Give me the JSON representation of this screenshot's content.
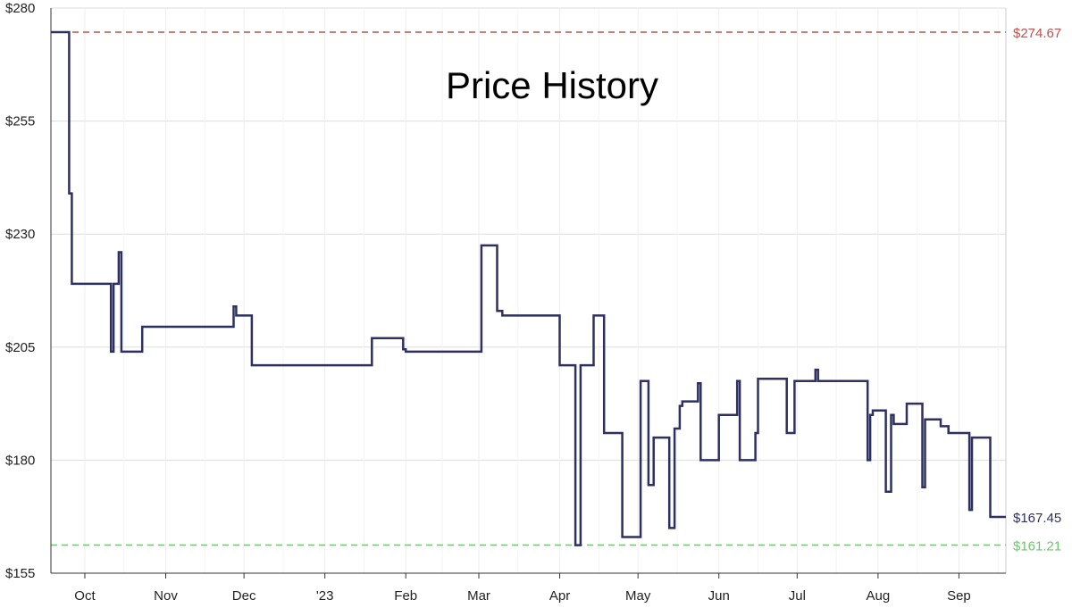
{
  "chart_data": {
    "type": "line",
    "title": "Price History",
    "xlabel": "",
    "ylabel": "",
    "step": true,
    "currency": "$",
    "ylim": [
      155,
      280
    ],
    "yticks": [
      155,
      180,
      205,
      230,
      255,
      280
    ],
    "ytick_labels": [
      "$155",
      "$180",
      "$205",
      "$230",
      "$255",
      "$280"
    ],
    "xlim": [
      "2022-09-18",
      "2023-09-19"
    ],
    "xticks": [
      {
        "date": "2022-10-01",
        "label": "Oct"
      },
      {
        "date": "2022-11-01",
        "label": "Nov"
      },
      {
        "date": "2022-12-01",
        "label": "Dec"
      },
      {
        "date": "2023-01-01",
        "label": "'23"
      },
      {
        "date": "2023-02-01",
        "label": "Feb"
      },
      {
        "date": "2023-03-01",
        "label": "Mar"
      },
      {
        "date": "2023-04-01",
        "label": "Apr"
      },
      {
        "date": "2023-05-01",
        "label": "May"
      },
      {
        "date": "2023-06-01",
        "label": "Jun"
      },
      {
        "date": "2023-07-01",
        "label": "Jul"
      },
      {
        "date": "2023-08-01",
        "label": "Aug"
      },
      {
        "date": "2023-09-01",
        "label": "Sep"
      }
    ],
    "grid": true,
    "colors": {
      "line": "#2d3060",
      "highest": "#c0504d",
      "lowest": "#6cc56c",
      "current": "#2d3060",
      "grid": "#dddddd"
    },
    "reference_lines": [
      {
        "kind": "highest",
        "value": 274.67,
        "label": "$274.67"
      },
      {
        "kind": "lowest",
        "value": 161.21,
        "label": "$161.21"
      }
    ],
    "current": {
      "value": 167.45,
      "label": "$167.45"
    },
    "series": [
      {
        "x": [
          "2022-09-18",
          "2022-09-25",
          "2022-09-26",
          "2022-10-11",
          "2022-10-12",
          "2022-10-14",
          "2022-10-15",
          "2022-10-16",
          "2022-10-17",
          "2022-10-23",
          "2022-11-27",
          "2022-11-28",
          "2022-12-04",
          "2023-01-09",
          "2023-01-19",
          "2023-01-20",
          "2023-01-31",
          "2023-02-01",
          "2023-02-28",
          "2023-03-02",
          "2023-03-08",
          "2023-03-10",
          "2023-03-24",
          "2023-03-25",
          "2023-04-01",
          "2023-04-07",
          "2023-04-09",
          "2023-04-14",
          "2023-04-18",
          "2023-04-25",
          "2023-05-02",
          "2023-05-05",
          "2023-05-07",
          "2023-05-12",
          "2023-05-13",
          "2023-05-15",
          "2023-05-17",
          "2023-05-18",
          "2023-05-24",
          "2023-05-25",
          "2023-05-31",
          "2023-06-01",
          "2023-06-08",
          "2023-06-09",
          "2023-06-15",
          "2023-06-16",
          "2023-06-27",
          "2023-06-30",
          "2023-07-08",
          "2023-07-09",
          "2023-07-28",
          "2023-07-29",
          "2023-07-30",
          "2023-08-03",
          "2023-08-04",
          "2023-08-06",
          "2023-08-07",
          "2023-08-12",
          "2023-08-18",
          "2023-08-19",
          "2023-08-25",
          "2023-08-27",
          "2023-08-28",
          "2023-09-04",
          "2023-09-05",
          "2023-09-06",
          "2023-09-12",
          "2023-09-13"
        ],
        "values": [
          274.67,
          239.0,
          219.0,
          204.0,
          219.0,
          226.0,
          204.0,
          204.0,
          204.0,
          209.5,
          214.0,
          212.0,
          201.0,
          201.0,
          207.0,
          207.0,
          204.5,
          204.0,
          204.0,
          227.5,
          213.0,
          212.0,
          212.0,
          212.0,
          201.0,
          161.21,
          201.0,
          212.0,
          186.0,
          163.0,
          197.5,
          174.5,
          185.0,
          185.0,
          165.0,
          187.0,
          192.0,
          193.0,
          197.0,
          180.0,
          180.0,
          190.0,
          197.5,
          180.0,
          186.0,
          198.0,
          186.0,
          197.5,
          200.0,
          197.5,
          180.0,
          190.0,
          191.0,
          191.0,
          173.0,
          190.0,
          188.0,
          192.5,
          174.0,
          189.0,
          187.5,
          187.5,
          186.0,
          186.0,
          169.0,
          185.0,
          185.0,
          167.45
        ]
      }
    ]
  }
}
